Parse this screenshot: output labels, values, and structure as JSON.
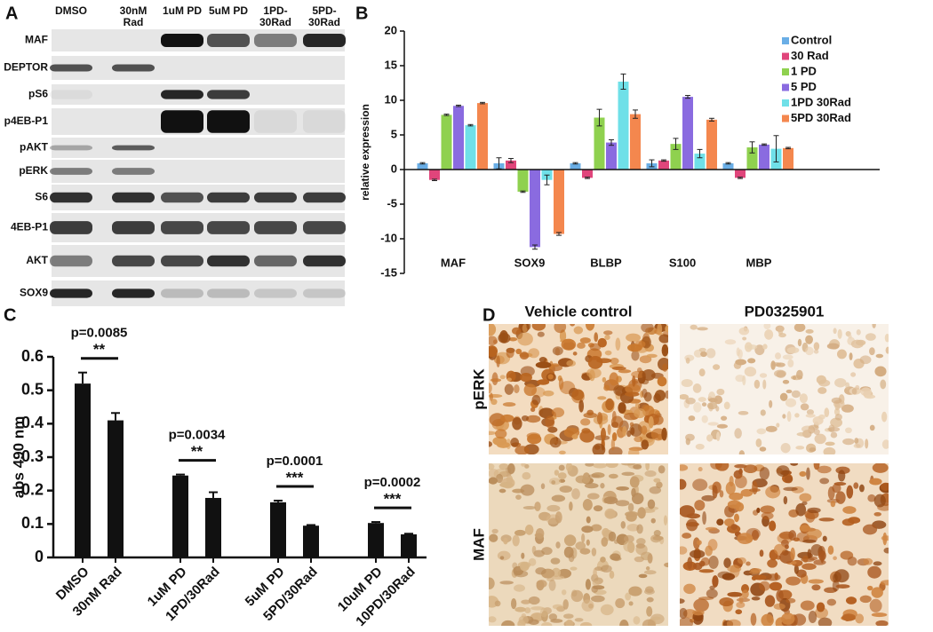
{
  "blot": {
    "panel_label": "A",
    "lanes": [
      "DMSO",
      "30nM Rad",
      "1uM PD",
      "5uM PD",
      "1PD-30Rad",
      "5PD-30Rad"
    ],
    "rows": [
      "MAF",
      "DEPTOR",
      "pS6",
      "p4EB-P1",
      "pAKT",
      "pERK",
      "S6",
      "4EB-P1",
      "AKT",
      "SOX9"
    ]
  },
  "chart_data": [
    {
      "panel_label": "B",
      "type": "bar",
      "ylabel": "relative expression",
      "categories": [
        "MAF",
        "SOX9",
        "BLBP",
        "S100",
        "MBP"
      ],
      "series": [
        {
          "name": "Control",
          "color": "#6aaee6",
          "values": [
            0.9,
            0.9,
            0.9,
            0.9,
            0.9
          ],
          "errors": [
            0.1,
            0.8,
            0.1,
            0.5,
            0.1
          ]
        },
        {
          "name": "30 Rad",
          "color": "#e0457b",
          "values": [
            -1.5,
            1.3,
            -1.2,
            1.3,
            -1.2
          ],
          "errors": [
            0.1,
            0.3,
            0.1,
            0.1,
            0.1
          ]
        },
        {
          "name": "1 PD",
          "color": "#8fd14f",
          "values": [
            7.9,
            -3.2,
            7.5,
            3.7,
            3.2
          ],
          "errors": [
            0.1,
            0.1,
            1.2,
            0.8,
            0.8
          ]
        },
        {
          "name": "5 PD",
          "color": "#8a6be0",
          "values": [
            9.2,
            -11.2,
            3.9,
            10.5,
            3.6
          ],
          "errors": [
            0.1,
            0.3,
            0.4,
            0.2,
            0.1
          ]
        },
        {
          "name": "1PD 30Rad",
          "color": "#6fe0e8",
          "values": [
            6.4,
            -1.5,
            12.7,
            2.3,
            3.0
          ],
          "errors": [
            0.1,
            0.7,
            1.1,
            0.6,
            1.9
          ]
        },
        {
          "name": "5PD 30Rad",
          "color": "#f4874e",
          "values": [
            9.6,
            -9.3,
            8.0,
            7.2,
            3.1
          ],
          "errors": [
            0.1,
            0.2,
            0.6,
            0.2,
            0.1
          ]
        }
      ],
      "ylim": [
        -15,
        20
      ],
      "yticks": [
        -15,
        -10,
        -5,
        0,
        5,
        10,
        15,
        20
      ],
      "legend": "upper right"
    },
    {
      "panel_label": "C",
      "type": "bar",
      "ylabel": "abs 490 nm",
      "categories": [
        "DMSO",
        "30nM Rad",
        "1uM PD",
        "1PD/30Rad",
        "5uM PD",
        "5PD/30Rad",
        "10uM PD",
        "10PD/30Rad"
      ],
      "values": [
        0.52,
        0.41,
        0.245,
        0.178,
        0.165,
        0.095,
        0.103,
        0.069
      ],
      "errors": [
        0.033,
        0.022,
        0.003,
        0.017,
        0.005,
        0.002,
        0.003,
        0.002
      ],
      "color": "#111111",
      "ylim": [
        0,
        0.6
      ],
      "yticks": [
        0,
        0.1,
        0.2,
        0.3,
        0.4,
        0.5,
        0.6
      ],
      "annotations": [
        {
          "text": "p=0.0085",
          "stars": "**"
        },
        {
          "text": "p=0.0034",
          "stars": "**"
        },
        {
          "text": "p=0.0001",
          "stars": "***"
        },
        {
          "text": "p=0.0002",
          "stars": "***"
        }
      ]
    }
  ],
  "histology": {
    "panel_label": "D",
    "columns": [
      "Vehicle control",
      "PD0325901"
    ],
    "rows": [
      "pERK",
      "MAF"
    ]
  }
}
